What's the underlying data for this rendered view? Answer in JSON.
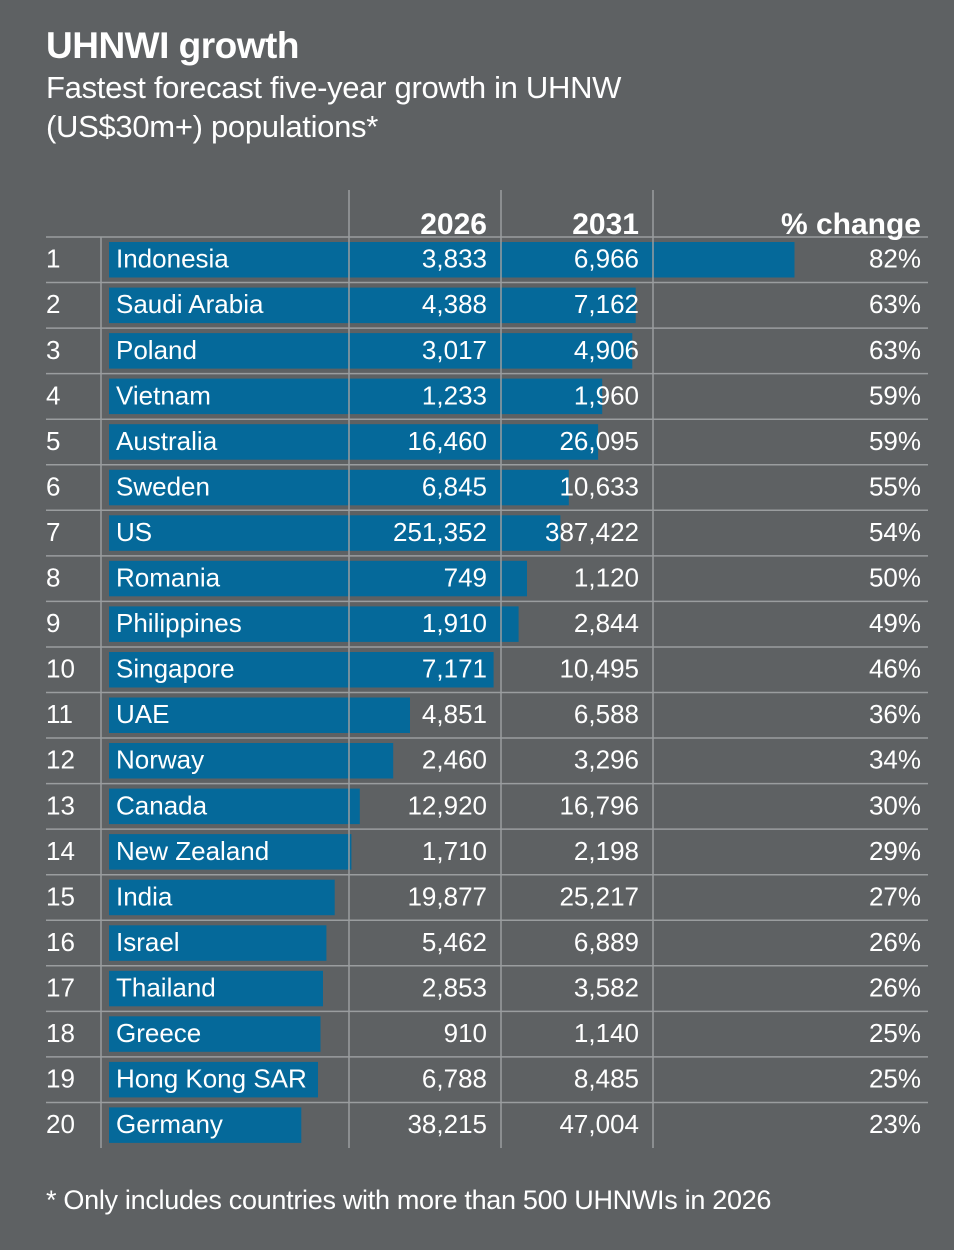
{
  "title": "UHNWI growth",
  "subtitle": "Fastest forecast five-year growth in UHNW (US$30m+) populations*",
  "footnote": "* Only includes countries with more than 500 UHNWIs in 2026",
  "colors": {
    "background": "#5e6163",
    "bar": "#05699a",
    "text": "#ffffff",
    "gridline": "#9a9d9f"
  },
  "chart_data": {
    "type": "table",
    "columns": [
      "2026",
      "2031",
      "% change"
    ],
    "bar_metric": "% change",
    "bar_range": [
      0,
      100
    ],
    "rows": [
      {
        "rank": "1",
        "country": "Indonesia",
        "v2026": "3,833",
        "v2031": "6,966",
        "change_label": "82%",
        "change": 82
      },
      {
        "rank": "2",
        "country": "Saudi Arabia",
        "v2026": "4,388",
        "v2031": "7,162",
        "change_label": "63%",
        "change": 63
      },
      {
        "rank": "3",
        "country": "Poland",
        "v2026": "3,017",
        "v2031": "4,906",
        "change_label": "63%",
        "change": 62.6
      },
      {
        "rank": "4",
        "country": "Vietnam",
        "v2026": "1,233",
        "v2031": "1,960",
        "change_label": "59%",
        "change": 59
      },
      {
        "rank": "5",
        "country": "Australia",
        "v2026": "16,460",
        "v2031": "26,095",
        "change_label": "59%",
        "change": 58.5
      },
      {
        "rank": "6",
        "country": "Sweden",
        "v2026": "6,845",
        "v2031": "10,633",
        "change_label": "55%",
        "change": 55
      },
      {
        "rank": "7",
        "country": "US",
        "v2026": "251,352",
        "v2031": "387,422",
        "change_label": "54%",
        "change": 54
      },
      {
        "rank": "8",
        "country": "Romania",
        "v2026": "749",
        "v2031": "1,120",
        "change_label": "50%",
        "change": 50
      },
      {
        "rank": "9",
        "country": "Philippines",
        "v2026": "1,910",
        "v2031": "2,844",
        "change_label": "49%",
        "change": 49
      },
      {
        "rank": "10",
        "country": "Singapore",
        "v2026": "7,171",
        "v2031": "10,495",
        "change_label": "46%",
        "change": 46
      },
      {
        "rank": "11",
        "country": "UAE",
        "v2026": "4,851",
        "v2031": "6,588",
        "change_label": "36%",
        "change": 36
      },
      {
        "rank": "12",
        "country": "Norway",
        "v2026": "2,460",
        "v2031": "3,296",
        "change_label": "34%",
        "change": 34
      },
      {
        "rank": "13",
        "country": "Canada",
        "v2026": "12,920",
        "v2031": "16,796",
        "change_label": "30%",
        "change": 30
      },
      {
        "rank": "14",
        "country": "New Zealand",
        "v2026": "1,710",
        "v2031": "2,198",
        "change_label": "29%",
        "change": 29
      },
      {
        "rank": "15",
        "country": "India",
        "v2026": "19,877",
        "v2031": "25,217",
        "change_label": "27%",
        "change": 27
      },
      {
        "rank": "16",
        "country": "Israel",
        "v2026": "5,462",
        "v2031": "6,889",
        "change_label": "26%",
        "change": 26
      },
      {
        "rank": "17",
        "country": "Thailand",
        "v2026": "2,853",
        "v2031": "3,582",
        "change_label": "26%",
        "change": 25.6
      },
      {
        "rank": "18",
        "country": "Greece",
        "v2026": "910",
        "v2031": "1,140",
        "change_label": "25%",
        "change": 25.3
      },
      {
        "rank": "19",
        "country": "Hong Kong SAR",
        "v2026": "6,788",
        "v2031": "8,485",
        "change_label": "25%",
        "change": 25
      },
      {
        "rank": "20",
        "country": "Germany",
        "v2026": "38,215",
        "v2031": "47,004",
        "change_label": "23%",
        "change": 23
      }
    ]
  }
}
